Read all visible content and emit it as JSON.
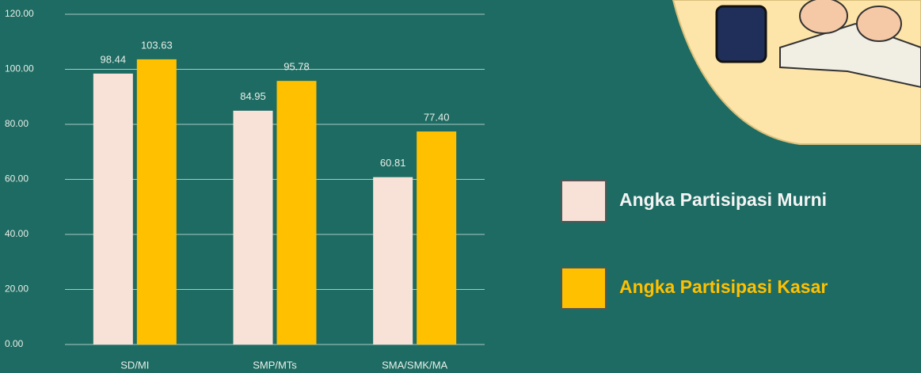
{
  "chart_data": {
    "type": "bar",
    "categories": [
      "SD/MI",
      "SMP/MTs",
      "SMA/SMK/MA"
    ],
    "series": [
      {
        "name": "Angka Partisipasi Murni",
        "color": "#f8e2d8",
        "values": [
          98.44,
          84.95,
          60.81
        ],
        "value_labels": [
          "98.44",
          "84.95",
          "60.81"
        ]
      },
      {
        "name": "Angka Partisipasi Kasar",
        "color": "#ffc000",
        "values": [
          103.63,
          95.78,
          77.4
        ],
        "value_labels": [
          "103.63",
          "95.78",
          "77.40"
        ]
      }
    ],
    "ylim": [
      0,
      120
    ],
    "yticks": [
      {
        "value": 0,
        "label": "0.00"
      },
      {
        "value": 20,
        "label": "20.00"
      },
      {
        "value": 40,
        "label": "40.00"
      },
      {
        "value": 60,
        "label": "60.00"
      },
      {
        "value": 80,
        "label": "80.00"
      },
      {
        "value": 100,
        "label": "100.00"
      },
      {
        "value": 120,
        "label": "120.00"
      }
    ],
    "grid": true
  }
}
